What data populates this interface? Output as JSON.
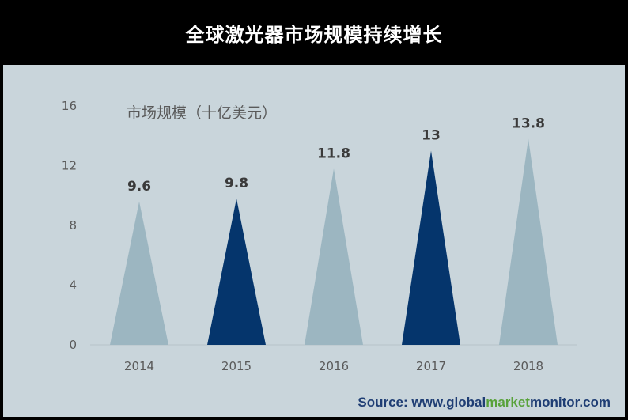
{
  "title": "全球激光器市场规模持续增长",
  "chart_data": {
    "type": "bar",
    "mark_shape": "triangle",
    "unit_label": "市场规模（十亿美元）",
    "categories": [
      "2014",
      "2015",
      "2016",
      "2017",
      "2018"
    ],
    "values": [
      9.6,
      9.8,
      11.8,
      13,
      13.8
    ],
    "value_labels": [
      "9.6",
      "9.8",
      "11.8",
      "13",
      "13.8"
    ],
    "ylim": [
      0,
      16
    ],
    "yticks": [
      "0",
      "4",
      "8",
      "12",
      "16"
    ],
    "ytick_values": [
      0,
      4,
      8,
      12,
      16
    ],
    "colors": [
      "#9cb6c1",
      "#05356c",
      "#9cb6c1",
      "#05356c",
      "#9cb6c1"
    ],
    "grid": false
  },
  "source": {
    "prefix": "Source: www.",
    "part_global": "global",
    "part_market": "market",
    "part_monitor": "monitor",
    "suffix": ".com"
  },
  "colors": {
    "background": "#000000",
    "panel": "#c9d5db",
    "light_bar": "#9cb6c1",
    "dark_bar": "#05356c",
    "source_blue": "#1f3e74",
    "source_green": "#58a23a"
  }
}
